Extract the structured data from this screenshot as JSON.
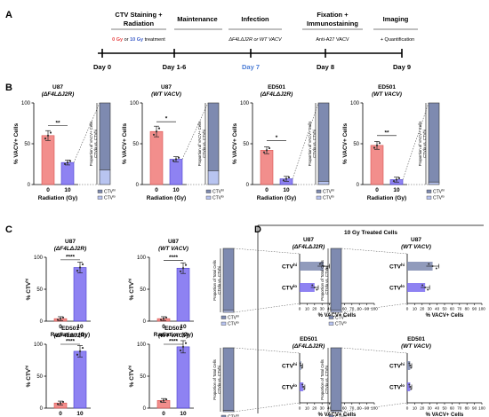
{
  "panels": {
    "A": "A",
    "B": "B",
    "C": "C",
    "D": "D"
  },
  "timeline": {
    "steps": [
      {
        "title": "CTV Staining +",
        "title2": "Radiation",
        "day": "Day 0",
        "sub_a": "0 Gy",
        "sub_or": "or",
        "sub_b": "10 Gy",
        "sub_end": "treatment"
      },
      {
        "title": "Maintenance",
        "day": "Day 1-6"
      },
      {
        "title": "Infection",
        "day": "Day 7",
        "sub": "ΔF4LΔJ2R or WT VACV"
      },
      {
        "title": "Fixation +",
        "title2": "Immunostaining",
        "day": "Day 8",
        "sub": "Anti-A27 VACV"
      },
      {
        "title": "Imaging",
        "day": "Day 9",
        "sub": "+ Quantification"
      }
    ]
  },
  "common": {
    "radiation_label": "Radiation (Gy)",
    "x0": "0",
    "x10": "10",
    "vacv_label": "% VACV+ Cells",
    "ctv_label": "% CTV",
    "ctv_sup": "hi",
    "prop_label_1": "Proportion of VACV+ Cells",
    "prop_label_2": "CTVlo vs. CTVhi",
    "prop_total_1": "Proportion of Total Cells",
    "prop_total_2": "CTVlo vs. CTVhi",
    "legend_hi": "CTVhi",
    "legend_lo": "CTVlo",
    "d_title": "10 Gy Treated Cells",
    "d_row_hi": "CTVhi",
    "d_row_lo": "CTVlo",
    "d_xlabel": "% VACV+ Cells",
    "colors": {
      "red": "#f07a78",
      "blue": "#7a6cf0",
      "slate": "#7e8ab0",
      "lightblue": "#b8c4f0",
      "infection_day": "#4c7dd6",
      "zero_gy": "#e64545",
      "ten_gy": "#3d5ec9"
    }
  },
  "chart_data": [
    {
      "panel": "B",
      "type": "bar",
      "title": "U87",
      "subtitle": "(ΔF4LΔJ2R)",
      "categories": [
        "0",
        "10"
      ],
      "values": [
        60,
        27
      ],
      "ylim": [
        0,
        100
      ],
      "significance": "**",
      "stacked_proportion": {
        "CTVhi": 18,
        "CTVlo": 82
      }
    },
    {
      "panel": "B",
      "type": "bar",
      "title": "U87",
      "subtitle": "(WT VACV)",
      "categories": [
        "0",
        "10"
      ],
      "values": [
        65,
        31
      ],
      "ylim": [
        0,
        100
      ],
      "significance": "*",
      "stacked_proportion": {
        "CTVhi": 17,
        "CTVlo": 83
      }
    },
    {
      "panel": "B",
      "type": "bar",
      "title": "ED501",
      "subtitle": "(ΔF4LΔJ2R)",
      "categories": [
        "0",
        "10"
      ],
      "values": [
        42,
        7
      ],
      "ylim": [
        0,
        100
      ],
      "significance": "*",
      "stacked_proportion": {
        "CTVhi": 4,
        "CTVlo": 96
      }
    },
    {
      "panel": "B",
      "type": "bar",
      "title": "ED501",
      "subtitle": "(WT VACV)",
      "categories": [
        "0",
        "10"
      ],
      "values": [
        48,
        6
      ],
      "ylim": [
        0,
        100
      ],
      "significance": "**",
      "stacked_proportion": {
        "CTVhi": 3,
        "CTVlo": 97
      }
    },
    {
      "panel": "C",
      "type": "bar",
      "title": "U87",
      "subtitle": "(ΔF4LΔJ2R)",
      "categories": [
        "0",
        "10"
      ],
      "values": [
        4,
        84
      ],
      "ylim": [
        0,
        100
      ],
      "significance": "****"
    },
    {
      "panel": "C",
      "type": "bar",
      "title": "U87",
      "subtitle": "(WT VACV)",
      "categories": [
        "0",
        "10"
      ],
      "values": [
        4,
        83
      ],
      "ylim": [
        0,
        100
      ],
      "significance": "****"
    },
    {
      "panel": "C",
      "type": "bar",
      "title": "ED501",
      "subtitle": "(ΔF4LΔJ2R)",
      "categories": [
        "0",
        "10"
      ],
      "values": [
        8,
        89
      ],
      "ylim": [
        0,
        100
      ],
      "significance": "****"
    },
    {
      "panel": "C",
      "type": "bar",
      "title": "ED501",
      "subtitle": "(WT VACV)",
      "categories": [
        "0",
        "10"
      ],
      "values": [
        12,
        96
      ],
      "ylim": [
        0,
        100
      ],
      "significance": "****"
    },
    {
      "panel": "D",
      "type": "bar",
      "title": "U87",
      "subtitle": "(ΔF4LΔJ2R)",
      "orientation": "horizontal",
      "categories": [
        "CTVhi",
        "CTVlo"
      ],
      "values": [
        32,
        20
      ],
      "xlim": [
        0,
        100
      ],
      "xticks": [
        "0",
        "10",
        "20",
        "30",
        "40",
        "50",
        "60",
        "70",
        "80",
        "90",
        "100"
      ],
      "stacked_proportion": {
        "CTVhi": 3,
        "CTVlo": 97
      }
    },
    {
      "panel": "D",
      "type": "bar",
      "title": "U87",
      "subtitle": "(WT VACV)",
      "orientation": "horizontal",
      "categories": [
        "CTVhi",
        "CTVlo"
      ],
      "values": [
        34,
        24
      ],
      "xlim": [
        0,
        100
      ],
      "xticks": [
        "0",
        "10",
        "20",
        "30",
        "40",
        "50",
        "60",
        "70",
        "80",
        "90",
        "100"
      ],
      "stacked_proportion": {
        "CTVhi": 3,
        "CTVlo": 97
      }
    },
    {
      "panel": "D",
      "type": "bar",
      "title": "ED501",
      "subtitle": "(ΔF4LΔJ2R)",
      "orientation": "horizontal",
      "categories": [
        "CTVhi",
        "CTVlo"
      ],
      "values": [
        2,
        5
      ],
      "xlim": [
        0,
        100
      ],
      "xticks": [
        "0",
        "10",
        "20",
        "30",
        "40",
        "50",
        "60",
        "70",
        "80",
        "90",
        "100"
      ],
      "stacked_proportion": {
        "CTVhi": 2,
        "CTVlo": 98
      }
    },
    {
      "panel": "D",
      "type": "bar",
      "title": "ED501",
      "subtitle": "(WT VACV)",
      "orientation": "horizontal",
      "categories": [
        "CTVhi",
        "CTVlo"
      ],
      "values": [
        4,
        4
      ],
      "xlim": [
        0,
        100
      ],
      "xticks": [
        "0",
        "10",
        "20",
        "30",
        "40",
        "50",
        "60",
        "70",
        "80",
        "90",
        "100"
      ],
      "stacked_proportion": {
        "CTVhi": 2,
        "CTVlo": 98
      }
    }
  ]
}
